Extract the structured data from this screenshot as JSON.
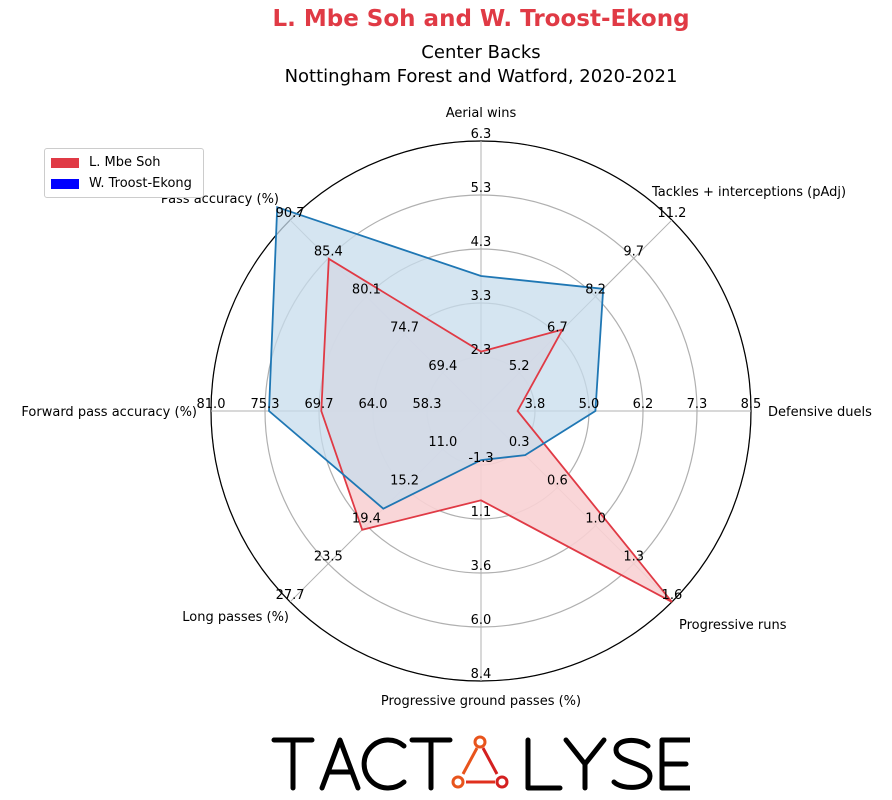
{
  "title": "L. Mbe Soh and W. Troost-Ekong",
  "subtitle_line1": "Center Backs",
  "subtitle_line2": "Nottingham Forest and Watford, 2020-2021",
  "logo_text": "TACTALYSE",
  "colors": {
    "player1": "#e03a45",
    "player1_fill": "#f8d1d4",
    "player2": "#1f77b4",
    "player2_fill": "#c7dcec",
    "legend_player2": "#0000ff",
    "grid": "#b0b0b0"
  },
  "chart_data": {
    "type": "radar",
    "axes": [
      {
        "label": "Aerial wins",
        "ticks": [
          "2.3",
          "3.3",
          "4.3",
          "5.3",
          "6.3"
        ],
        "min": 1.3,
        "max": 6.3
      },
      {
        "label": "Tackles + interceptions (pAdj)",
        "ticks": [
          "5.2",
          "6.7",
          "8.2",
          "9.7",
          "11.2"
        ],
        "min": 3.7,
        "max": 11.2
      },
      {
        "label": "Defensive duels",
        "ticks": [
          "3.8",
          "5.0",
          "6.2",
          "7.3",
          "8.5"
        ],
        "min": 2.6,
        "max": 8.5
      },
      {
        "label": "Progressive runs",
        "ticks": [
          "0.3",
          "0.6",
          "1.0",
          "1.3",
          "1.6"
        ],
        "min": 0.0,
        "max": 1.6
      },
      {
        "label": "Progressive ground passes (%)",
        "ticks": [
          "-1.3",
          "1.1",
          "3.6",
          "6.0",
          "8.4"
        ],
        "min": -3.7,
        "max": 8.4
      },
      {
        "label": "Long passes (%)",
        "ticks": [
          "11.0",
          "15.2",
          "19.4",
          "23.5",
          "27.7"
        ],
        "min": 6.8,
        "max": 27.7
      },
      {
        "label": "Forward pass accuracy (%)",
        "ticks": [
          "58.3",
          "64.0",
          "69.7",
          "75.3",
          "81.0"
        ],
        "min": 52.6,
        "max": 81.0
      },
      {
        "label": "Pass accuracy (%)",
        "ticks": [
          "69.4",
          "74.7",
          "80.1",
          "85.4",
          "90.7"
        ],
        "min": 64.1,
        "max": 90.7
      }
    ],
    "series": [
      {
        "name": "L. Mbe Soh",
        "values": [
          2.4,
          6.9,
          3.4,
          1.6,
          0.3,
          19.8,
          69.4,
          85.3
        ]
      },
      {
        "name": "W. Troost-Ekong",
        "values": [
          3.8,
          8.5,
          5.1,
          0.37,
          -1.5,
          17.5,
          74.9,
          92.5
        ]
      }
    ],
    "legend": "upper-left"
  }
}
